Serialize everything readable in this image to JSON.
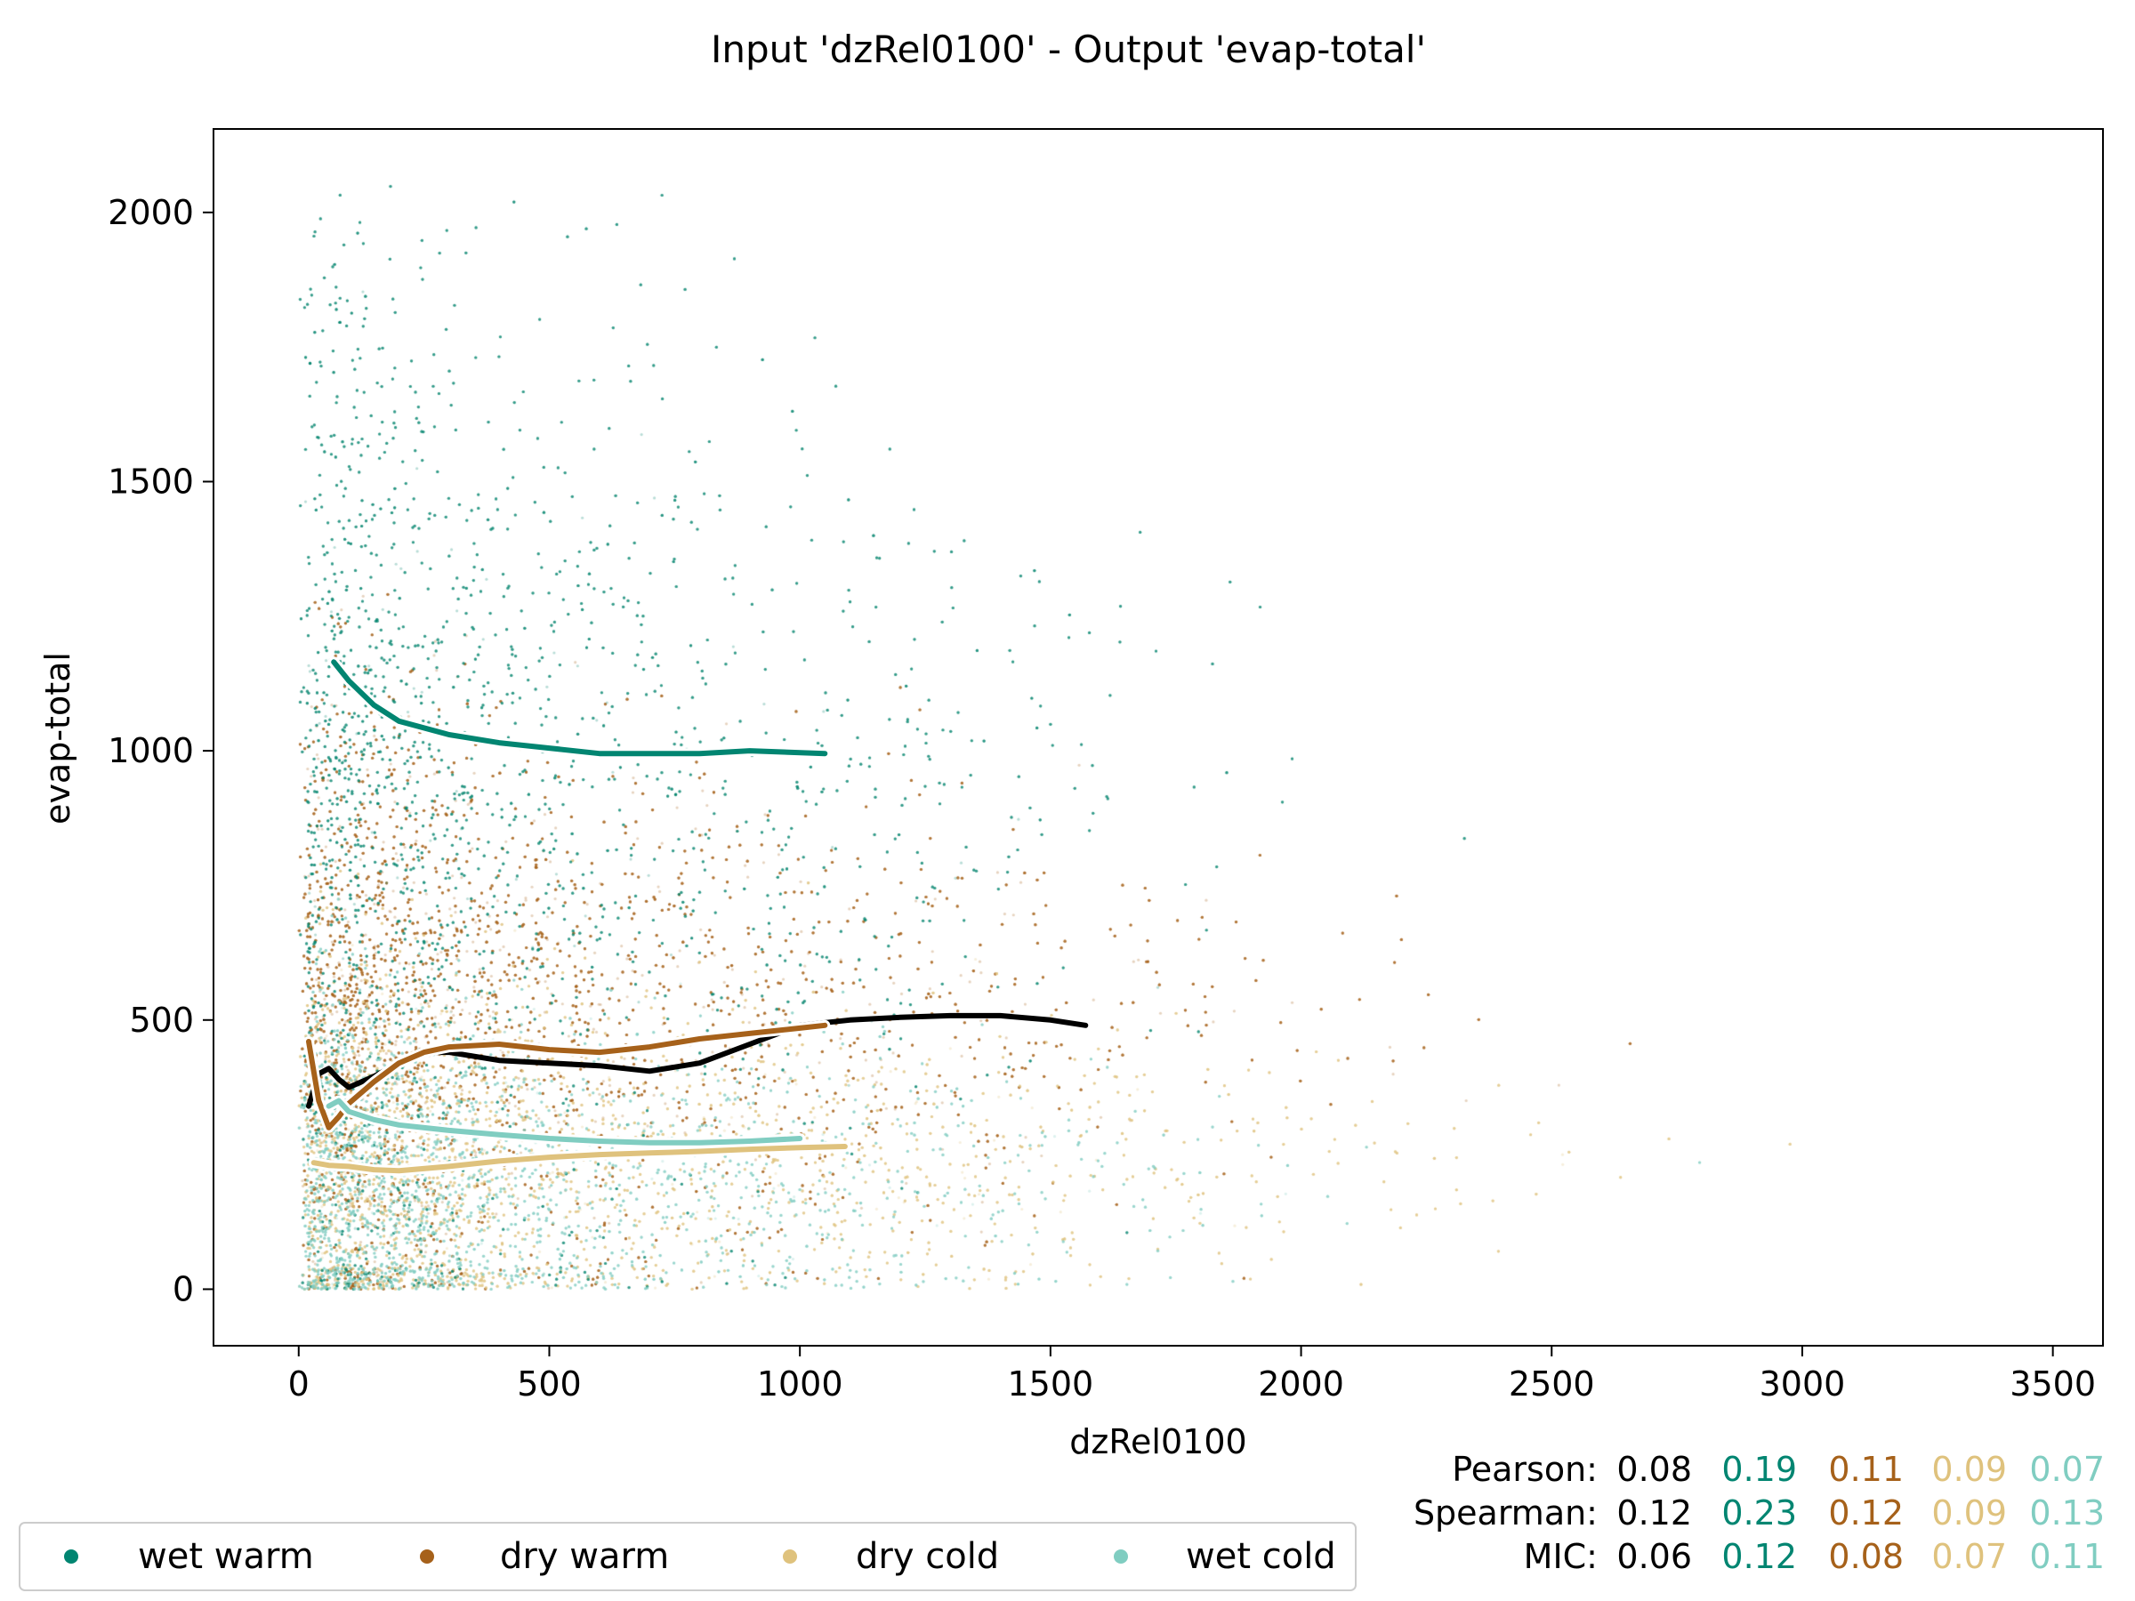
{
  "chart_data": {
    "type": "scatter",
    "title": "Input 'dzRel0100' - Output 'evap-total'",
    "xlabel": "dzRel0100",
    "ylabel": "evap-total",
    "xlim": [
      -170,
      3600
    ],
    "ylim": [
      -105,
      2155
    ],
    "xticks": [
      "0",
      "500",
      "1000",
      "1500",
      "2000",
      "2500",
      "3000",
      "3500"
    ],
    "yticks": [
      "0",
      "500",
      "1000",
      "1500",
      "2000"
    ],
    "xtick_values": [
      0,
      500,
      1000,
      1500,
      2000,
      2500,
      3000,
      3500
    ],
    "ytick_values": [
      0,
      500,
      1000,
      1500,
      2000
    ],
    "grid": false,
    "legend_position": "bottom-left, below axes",
    "series": [
      {
        "name": "wet warm",
        "color": "#018571",
        "cloud": {
          "x_mode": 150,
          "x_spread": 700,
          "x_max": 2700,
          "y_center": 900,
          "y_spread": 550,
          "y_max": 2050
        },
        "trend": {
          "x": [
            70,
            100,
            150,
            200,
            300,
            400,
            500,
            600,
            700,
            800,
            900,
            1050
          ],
          "y": [
            1165,
            1130,
            1085,
            1055,
            1030,
            1015,
            1005,
            995,
            995,
            995,
            1000,
            995
          ]
        }
      },
      {
        "name": "dry warm",
        "color": "#a6611a",
        "cloud": {
          "x_mode": 150,
          "x_spread": 800,
          "x_max": 3400,
          "y_center": 500,
          "y_spread": 300,
          "y_max": 1300
        },
        "trend": {
          "x": [
            20,
            40,
            60,
            80,
            100,
            150,
            200,
            250,
            300,
            400,
            500,
            600,
            700,
            800,
            900,
            1000,
            1050
          ],
          "y": [
            460,
            350,
            300,
            320,
            345,
            385,
            420,
            440,
            450,
            455,
            445,
            440,
            450,
            465,
            475,
            485,
            490
          ]
        }
      },
      {
        "name": "dry cold",
        "color": "#dfc27d",
        "cloud": {
          "x_mode": 150,
          "x_spread": 900,
          "x_max": 3300,
          "y_center": 230,
          "y_spread": 200,
          "y_max": 900
        },
        "trend": {
          "x": [
            30,
            60,
            100,
            150,
            200,
            300,
            400,
            500,
            600,
            700,
            800,
            900,
            1000,
            1090
          ],
          "y": [
            235,
            230,
            228,
            222,
            220,
            228,
            238,
            245,
            250,
            253,
            256,
            260,
            263,
            265
          ]
        }
      },
      {
        "name": "wet cold",
        "color": "#80cdc1",
        "cloud": {
          "x_mode": 100,
          "x_spread": 700,
          "x_max": 3100,
          "y_center": 200,
          "y_spread": 180,
          "y_max": 900
        },
        "trend": {
          "x": [
            60,
            80,
            100,
            150,
            200,
            300,
            400,
            500,
            600,
            700,
            800,
            900,
            1000
          ],
          "y": [
            340,
            350,
            330,
            315,
            305,
            295,
            287,
            280,
            275,
            272,
            272,
            275,
            280
          ]
        }
      }
    ],
    "overall_trend": {
      "name": "",
      "color": "#000000",
      "x": [
        20,
        40,
        60,
        80,
        100,
        150,
        200,
        250,
        300,
        400,
        500,
        600,
        700,
        800,
        900,
        1000,
        1100,
        1200,
        1300,
        1400,
        1500,
        1570
      ],
      "y": [
        340,
        400,
        410,
        390,
        375,
        395,
        420,
        440,
        440,
        425,
        420,
        415,
        405,
        420,
        455,
        490,
        500,
        505,
        508,
        508,
        500,
        490
      ]
    },
    "stats": {
      "rows": [
        {
          "label": "Pearson:",
          "values": [
            "0.08",
            "0.19",
            "0.11",
            "0.09",
            "0.07"
          ]
        },
        {
          "label": "Spearman:",
          "values": [
            "0.12",
            "0.23",
            "0.12",
            "0.09",
            "0.13"
          ]
        },
        {
          "label": "MIC:",
          "values": [
            "0.06",
            "0.12",
            "0.08",
            "0.07",
            "0.11"
          ]
        }
      ],
      "colors": [
        "#000000",
        "#018571",
        "#a6611a",
        "#dfc27d",
        "#80cdc1"
      ]
    }
  }
}
